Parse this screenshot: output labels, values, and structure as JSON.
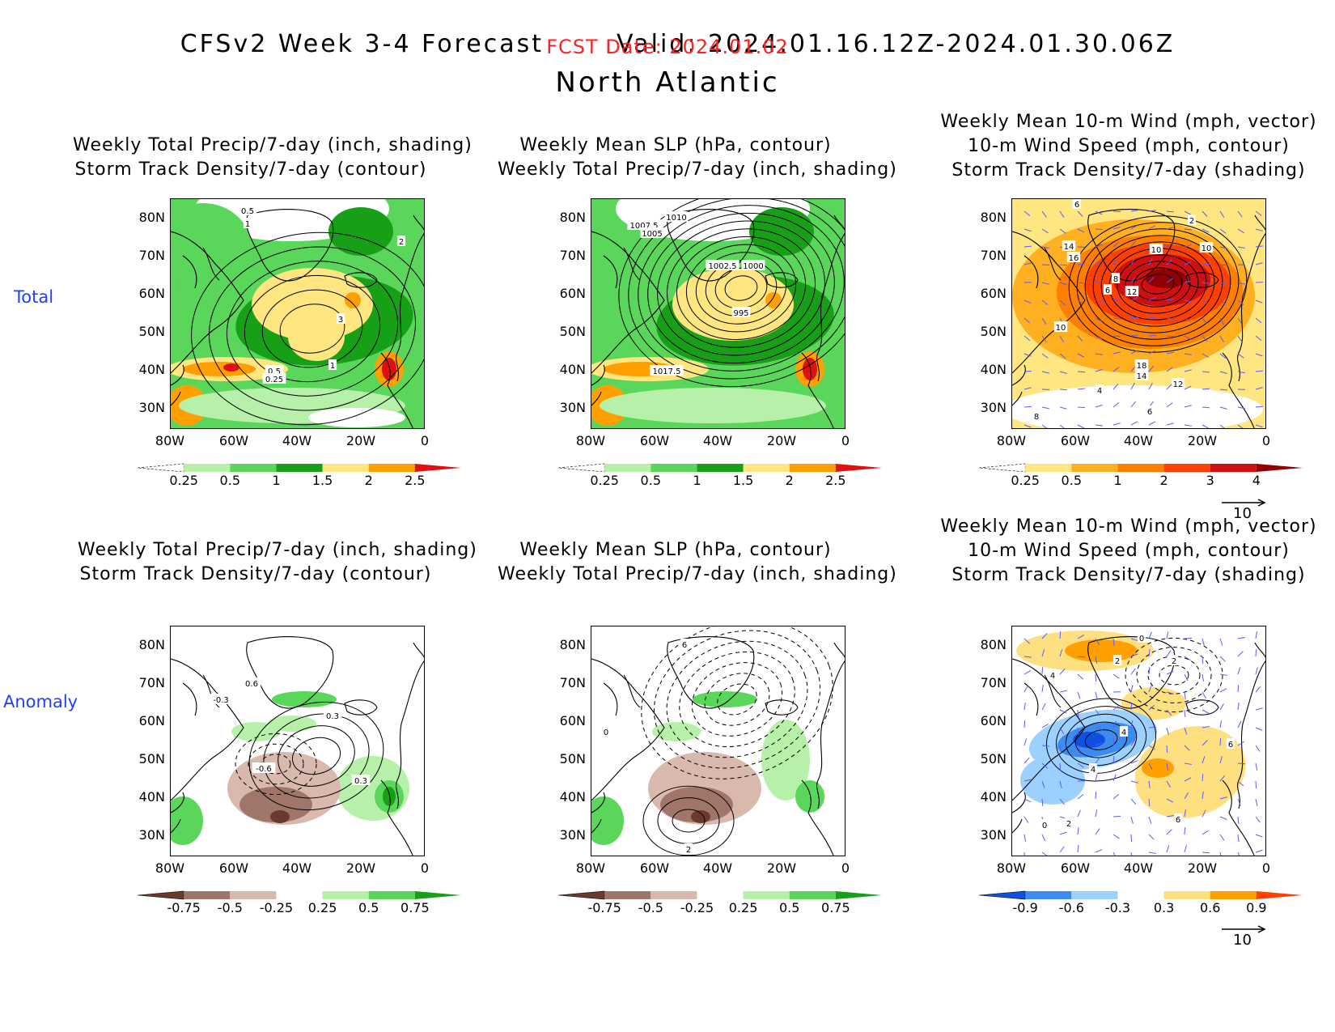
{
  "header": {
    "line1_left": "CFSv2 Week 3-4 Forecast",
    "line1_right": "Valid: 2024.01.16.12Z-2024.01.30.06Z",
    "fcst_date": "FCST Date: 2024.01.02",
    "region": "North Atlantic",
    "fcst_color": "#ff2020"
  },
  "row_labels": {
    "total": "Total",
    "anomaly": "Anomaly"
  },
  "axes": {
    "lat_ticks": [
      "80N",
      "70N",
      "60N",
      "50N",
      "40N",
      "30N"
    ],
    "lon_ticks": [
      "80W",
      "60W",
      "40W",
      "20W",
      "0"
    ]
  },
  "panels": {
    "precip_track": {
      "title_lines": [
        "Weekly Total Precip/7-day (inch, shading)",
        "Storm Track Density/7-day (contour)"
      ]
    },
    "slp_precip": {
      "title_lines": [
        "Weekly Mean SLP (hPa, contour)",
        "Weekly Total Precip/7-day (inch, shading)"
      ]
    },
    "wind_track": {
      "title_lines": [
        "Weekly Mean 10-m Wind (mph, vector)",
        "10-m Wind Speed (mph, contour)",
        "Storm Track Density/7-day (shading)"
      ]
    }
  },
  "colorbars": {
    "precip_total": {
      "ticks": [
        "0.25",
        "0.5",
        "1",
        "1.5",
        "2",
        "2.5"
      ],
      "colors": [
        "#ffffff",
        "#b7f0a8",
        "#5ad65a",
        "#17a017",
        "#ffe680",
        "#ffa000",
        "#e01010"
      ]
    },
    "track_total": {
      "ticks": [
        "0.25",
        "0.5",
        "1",
        "2",
        "3",
        "4"
      ],
      "colors": [
        "#ffffff",
        "#ffe680",
        "#ffb020",
        "#ff8000",
        "#ff4000",
        "#d01010",
        "#900000"
      ]
    },
    "precip_anom": {
      "ticks": [
        "-0.75",
        "-0.5",
        "-0.25",
        "0.25",
        "0.5",
        "0.75"
      ],
      "colors": [
        "#6b3a2e",
        "#a0766a",
        "#d9b8ae",
        "#ffffff",
        "#b7f0a8",
        "#5ad65a",
        "#17a017"
      ]
    },
    "track_anom": {
      "ticks": [
        "-0.9",
        "-0.6",
        "-0.3",
        "0.3",
        "0.6",
        "0.9"
      ],
      "colors": [
        "#1050e0",
        "#3c8cf0",
        "#9cd0ff",
        "#ffffff",
        "#ffe080",
        "#ffa000",
        "#ff4000"
      ]
    }
  },
  "vector_ref": "10",
  "contour_labels": {
    "precip_total": [
      "0.5",
      "1",
      "2",
      "3",
      "0.5",
      "0.25",
      "1"
    ],
    "slp_total": [
      "1010",
      "1007.5",
      "1005",
      "1002.5",
      "1000",
      "995",
      "1017.5"
    ],
    "wind_total": [
      "6",
      "2",
      "14",
      "16",
      "10",
      "8",
      "10",
      "6",
      "12",
      "10",
      "18",
      "14",
      "12",
      "4",
      "6",
      "8"
    ],
    "precip_anom": [
      "0.6",
      "-0.3",
      "0.3",
      "-0.6",
      "0.3"
    ],
    "slp_anom": [
      "6",
      "0",
      "2"
    ],
    "wind_anom": [
      "0",
      "2",
      "4",
      "2",
      "4",
      "6",
      "4",
      "0",
      "2",
      "6"
    ]
  }
}
